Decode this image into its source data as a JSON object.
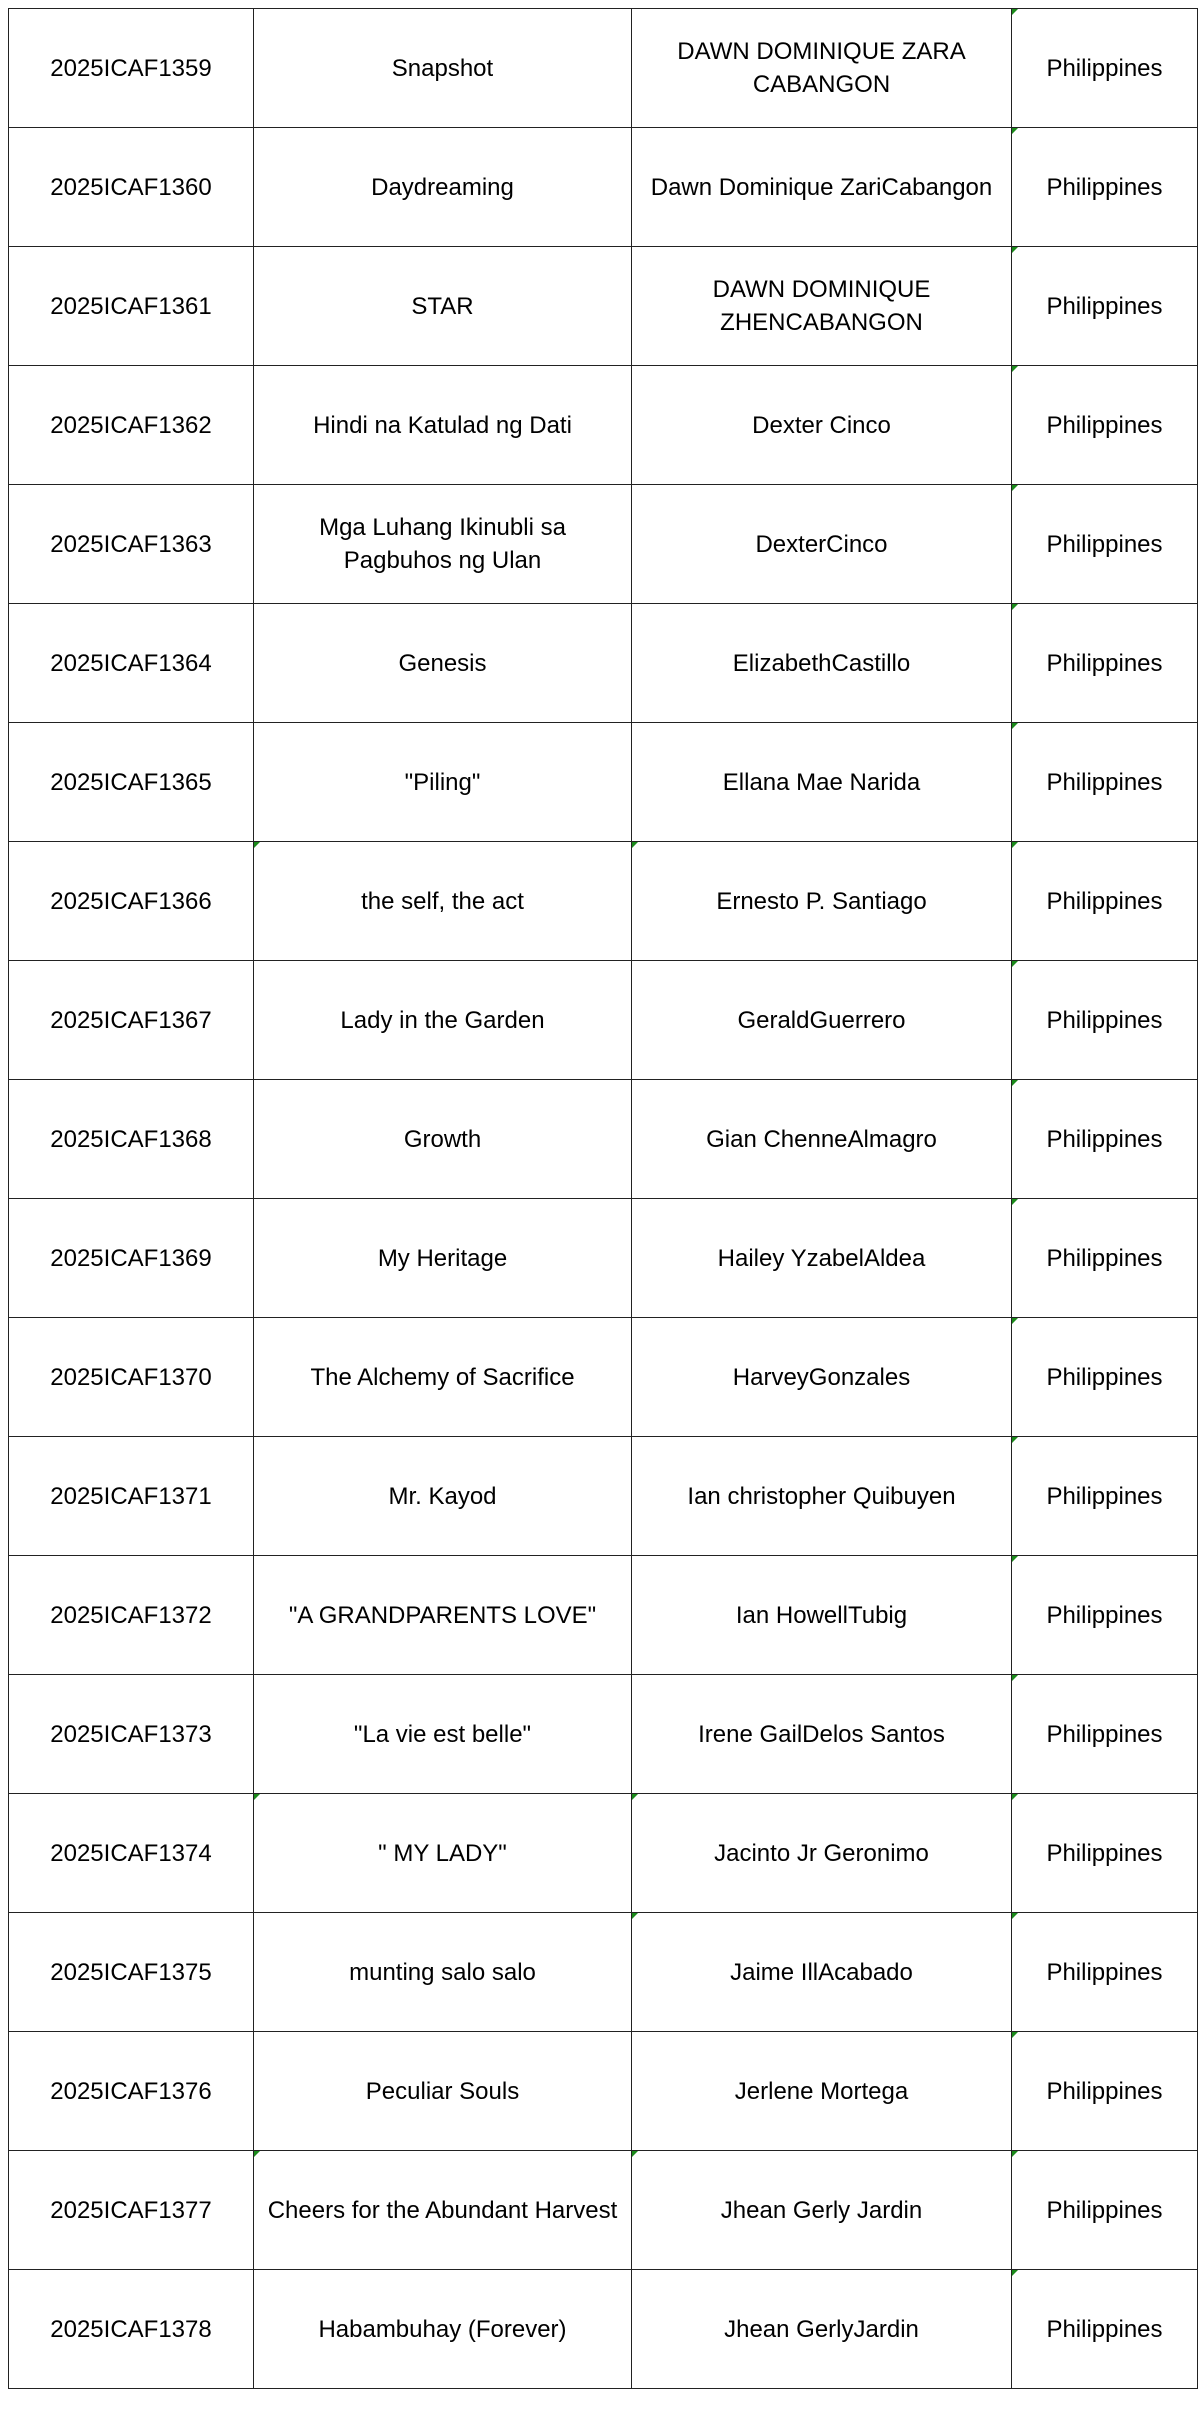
{
  "rows": [
    {
      "id": "2025ICAF1359",
      "title": "Snapshot",
      "artist": "DAWN DOMINIQUE ZARA CABANGON",
      "country": "Philippines",
      "marks": [
        3
      ]
    },
    {
      "id": "2025ICAF1360",
      "title": "Daydreaming",
      "artist": "Dawn Dominique ZariCabangon",
      "country": "Philippines",
      "marks": [
        3
      ]
    },
    {
      "id": "2025ICAF1361",
      "title": "STAR",
      "artist": "DAWN DOMINIQUE ZHENCABANGON",
      "country": "Philippines",
      "marks": [
        3
      ]
    },
    {
      "id": "2025ICAF1362",
      "title": "Hindi na Katulad ng Dati",
      "artist": "Dexter Cinco",
      "country": "Philippines",
      "marks": [
        3
      ]
    },
    {
      "id": "2025ICAF1363",
      "title": "Mga Luhang Ikinubli sa Pagbuhos ng Ulan",
      "artist": "DexterCinco",
      "country": "Philippines",
      "marks": [
        3
      ]
    },
    {
      "id": "2025ICAF1364",
      "title": "Genesis",
      "artist": "ElizabethCastillo",
      "country": "Philippines",
      "marks": [
        3
      ]
    },
    {
      "id": "2025ICAF1365",
      "title": "\"Piling\"",
      "artist": "Ellana Mae Narida",
      "country": "Philippines",
      "marks": [
        3
      ]
    },
    {
      "id": "2025ICAF1366",
      "title": "the self, the act",
      "artist": "Ernesto P. Santiago",
      "country": "Philippines",
      "marks": [
        1,
        2,
        3
      ]
    },
    {
      "id": "2025ICAF1367",
      "title": "Lady in the Garden",
      "artist": "GeraldGuerrero",
      "country": "Philippines",
      "marks": [
        3
      ]
    },
    {
      "id": "2025ICAF1368",
      "title": "Growth",
      "artist": "Gian ChenneAlmagro",
      "country": "Philippines",
      "marks": [
        3
      ]
    },
    {
      "id": "2025ICAF1369",
      "title": "My Heritage",
      "artist": "Hailey YzabelAldea",
      "country": "Philippines",
      "marks": [
        3
      ]
    },
    {
      "id": "2025ICAF1370",
      "title": "The Alchemy of Sacrifice",
      "artist": "HarveyGonzales",
      "country": "Philippines",
      "marks": [
        3
      ]
    },
    {
      "id": "2025ICAF1371",
      "title": "Mr. Kayod",
      "artist": "Ian christopher Quibuyen",
      "country": "Philippines",
      "marks": [
        3
      ]
    },
    {
      "id": "2025ICAF1372",
      "title": "\"A GRANDPARENTS LOVE\"",
      "artist": "Ian HowellTubig",
      "country": "Philippines",
      "marks": [
        3
      ]
    },
    {
      "id": "2025ICAF1373",
      "title": "\"La vie est belle\"",
      "artist": "Irene GailDelos Santos",
      "country": "Philippines",
      "marks": [
        3
      ]
    },
    {
      "id": "2025ICAF1374",
      "title": "\" MY LADY\"",
      "artist": "Jacinto Jr Geronimo",
      "country": "Philippines",
      "marks": [
        1,
        2,
        3
      ]
    },
    {
      "id": "2025ICAF1375",
      "title": "munting salo salo",
      "artist": "Jaime IllAcabado",
      "country": "Philippines",
      "marks": [
        2,
        3
      ]
    },
    {
      "id": "2025ICAF1376",
      "title": "Peculiar Souls",
      "artist": "Jerlene Mortega",
      "country": "Philippines",
      "marks": [
        3
      ]
    },
    {
      "id": "2025ICAF1377",
      "title": "Cheers for the Abundant Harvest",
      "artist": "Jhean Gerly Jardin",
      "country": "Philippines",
      "marks": [
        1,
        2,
        3
      ]
    },
    {
      "id": "2025ICAF1378",
      "title": "Habambuhay (Forever)",
      "artist": "Jhean GerlyJardin",
      "country": "Philippines",
      "marks": [
        3
      ]
    }
  ],
  "colors": {
    "cell_marker": "#1a8a1a",
    "border": "#222222"
  }
}
